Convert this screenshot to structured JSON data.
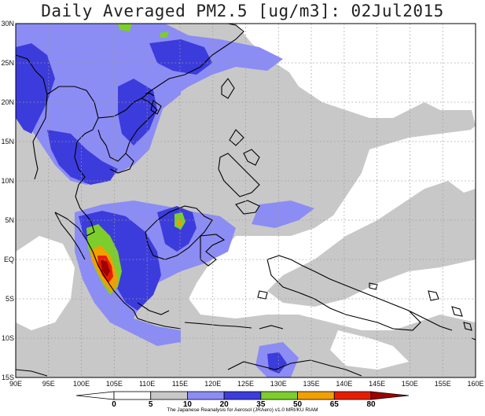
{
  "title": "Daily Averaged PM2.5 [ug/m3]: 02Jul2015",
  "credit": "The Japanese Reanalysis for Aerosol (JRAero) v1.0 MRI/KU RIAM",
  "lon_labels": [
    "90E",
    "95E",
    "100E",
    "105E",
    "110E",
    "115E",
    "120E",
    "125E",
    "130E",
    "135E",
    "140E",
    "145E",
    "150E",
    "155E",
    "160E"
  ],
  "lat_labels": [
    "30N",
    "25N",
    "20N",
    "15N",
    "10N",
    "5N",
    "EQ",
    "5S",
    "10S",
    "15S"
  ],
  "colorbar": {
    "bins": [
      {
        "color": "#ffffff"
      },
      {
        "color": "#ffffff"
      },
      {
        "color": "#c8c8c8"
      },
      {
        "color": "#8c8cf5"
      },
      {
        "color": "#3c3cdc"
      },
      {
        "color": "#7dcd2d"
      },
      {
        "color": "#f0a000"
      },
      {
        "color": "#e61e00"
      },
      {
        "color": "#a00000"
      }
    ],
    "labels": [
      "0",
      "5",
      "10",
      "20",
      "35",
      "50",
      "65",
      "80"
    ]
  },
  "legend_colors": {
    "light_gray": "#c8c8c8",
    "light_blue": "#8c8cf5",
    "blue": "#3c3cdc",
    "green": "#7dcd2d",
    "orange": "#f0a000",
    "red": "#e61e00",
    "dark_red": "#a00000"
  }
}
